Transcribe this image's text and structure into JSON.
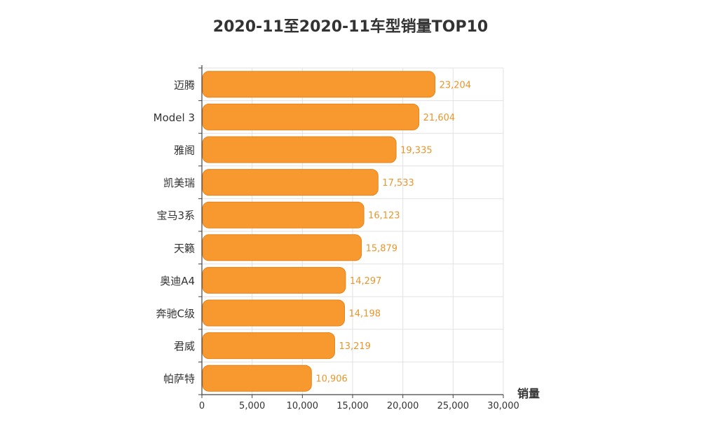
{
  "chart_data": {
    "type": "bar",
    "orientation": "horizontal",
    "title": "2020-11至2020-11车型销量TOP10",
    "xlabel": "销量",
    "ylabel": "",
    "categories": [
      "迈腾",
      "Model 3",
      "雅阁",
      "凯美瑞",
      "宝马3系",
      "天籁",
      "奥迪A4",
      "奔驰C级",
      "君威",
      "帕萨特"
    ],
    "values": [
      23204,
      21604,
      19335,
      17533,
      16123,
      15879,
      14297,
      14198,
      13219,
      10906
    ],
    "value_labels": [
      "23,204",
      "21,604",
      "19,335",
      "17,533",
      "16,123",
      "15,879",
      "14,297",
      "14,198",
      "13,219",
      "10,906"
    ],
    "xlim": [
      0,
      30000
    ],
    "x_ticks": [
      0,
      5000,
      10000,
      15000,
      20000,
      25000,
      30000
    ],
    "x_tick_labels": [
      "0",
      "5,000",
      "10,000",
      "15,000",
      "20,000",
      "25,000",
      "30,000"
    ],
    "grid": true,
    "legend": "none",
    "colors": {
      "bar": "#f7992f",
      "bar_border": "#e8831a",
      "value_label": "#e8962e",
      "grid": "#e2e2e2",
      "axis": "#444444",
      "text": "#333333"
    }
  }
}
